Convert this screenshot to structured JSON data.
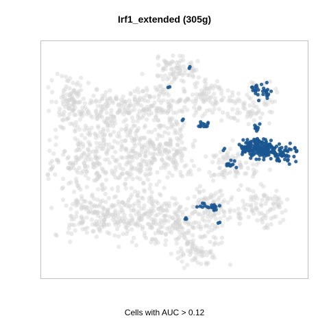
{
  "chart_data": {
    "type": "scatter",
    "title": "Irf1_extended (305g)",
    "xlabel": "Cells with AUC > 0.12",
    "ylabel": "",
    "xlim": [
      0,
      100
    ],
    "ylim": [
      0,
      100
    ],
    "axes_ticks": false,
    "grid": false,
    "colors": {
      "background_cells": "#d3d3d3",
      "highlight_cells": "#1a5791",
      "frame": "#bfbfbf"
    },
    "series": [
      {
        "role": "background",
        "clusters": [
          {
            "cx": 10,
            "cy": 74,
            "rx": 7,
            "ry": 10,
            "n": 110
          },
          {
            "cx": 28,
            "cy": 72,
            "rx": 13,
            "ry": 9,
            "n": 150
          },
          {
            "cx": 45,
            "cy": 73,
            "rx": 9,
            "ry": 10,
            "n": 110
          },
          {
            "cx": 50,
            "cy": 89,
            "rx": 8,
            "ry": 5,
            "n": 70
          },
          {
            "cx": 62,
            "cy": 77,
            "rx": 9,
            "ry": 8,
            "n": 90
          },
          {
            "cx": 80,
            "cy": 73,
            "rx": 9,
            "ry": 9,
            "n": 70
          },
          {
            "cx": 18,
            "cy": 50,
            "rx": 14,
            "ry": 15,
            "n": 230
          },
          {
            "cx": 38,
            "cy": 52,
            "rx": 10,
            "ry": 12,
            "n": 150
          },
          {
            "cx": 50,
            "cy": 53,
            "rx": 8,
            "ry": 10,
            "n": 90
          },
          {
            "cx": 73,
            "cy": 50,
            "rx": 10,
            "ry": 7,
            "n": 80
          },
          {
            "cx": 20,
            "cy": 25,
            "rx": 13,
            "ry": 9,
            "n": 160
          },
          {
            "cx": 42,
            "cy": 25,
            "rx": 13,
            "ry": 10,
            "n": 170
          },
          {
            "cx": 56,
            "cy": 20,
            "rx": 11,
            "ry": 10,
            "n": 110
          },
          {
            "cx": 65,
            "cy": 30,
            "rx": 8,
            "ry": 8,
            "n": 70
          },
          {
            "cx": 84,
            "cy": 30,
            "rx": 9,
            "ry": 9,
            "n": 90
          },
          {
            "cx": 60,
            "cy": 9,
            "rx": 8,
            "ry": 5,
            "n": 50
          }
        ]
      },
      {
        "role": "highlight",
        "clusters": [
          {
            "cx": 82,
            "cy": 55,
            "rx": 6,
            "ry": 4,
            "n": 170
          },
          {
            "cx": 91,
            "cy": 53,
            "rx": 5,
            "ry": 4,
            "n": 60
          },
          {
            "cx": 71,
            "cy": 48,
            "rx": 2,
            "ry": 1.5,
            "n": 12
          },
          {
            "cx": 85,
            "cy": 79,
            "rx": 2.5,
            "ry": 3,
            "n": 20
          },
          {
            "cx": 81,
            "cy": 81,
            "rx": 1.5,
            "ry": 1.5,
            "n": 8
          },
          {
            "cx": 82,
            "cy": 64,
            "rx": 1.2,
            "ry": 1.5,
            "n": 8
          },
          {
            "cx": 61,
            "cy": 65,
            "rx": 2,
            "ry": 1.5,
            "n": 12
          },
          {
            "cx": 65,
            "cy": 29,
            "rx": 2,
            "ry": 1.2,
            "n": 14
          },
          {
            "cx": 60,
            "cy": 31,
            "rx": 1.5,
            "ry": 2,
            "n": 6
          },
          {
            "cx": 54,
            "cy": 24,
            "rx": 1,
            "ry": 1,
            "n": 3
          },
          {
            "cx": 67,
            "cy": 23,
            "rx": 0.8,
            "ry": 0.8,
            "n": 2
          },
          {
            "cx": 48,
            "cy": 81,
            "rx": 0.6,
            "ry": 0.6,
            "n": 2
          },
          {
            "cx": 56,
            "cy": 90,
            "rx": 0.6,
            "ry": 0.6,
            "n": 2
          },
          {
            "cx": 53,
            "cy": 67,
            "rx": 0.6,
            "ry": 0.6,
            "n": 2
          },
          {
            "cx": 97,
            "cy": 54,
            "rx": 1,
            "ry": 1,
            "n": 4
          },
          {
            "cx": 69,
            "cy": 54,
            "rx": 0.8,
            "ry": 0.8,
            "n": 2
          },
          {
            "cx": 87,
            "cy": 56,
            "rx": 0.8,
            "ry": 0.8,
            "n": 3
          }
        ]
      }
    ]
  }
}
